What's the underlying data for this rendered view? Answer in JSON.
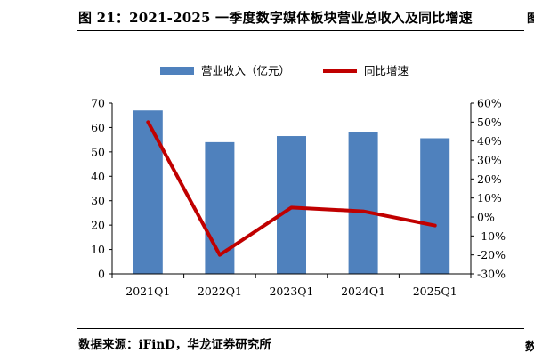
{
  "header": {
    "title": "图 21：2021-2025 一季度数字媒体板块营业总收入及同比增速",
    "edge_glyph_top": "图",
    "edge_glyph_bottom": "数"
  },
  "footer": {
    "source": "数据来源：iFinD，华龙证券研究所"
  },
  "chart_data": {
    "type": "bar",
    "title": "",
    "xlabel": "",
    "ylabel": "",
    "categories": [
      "2021Q1",
      "2022Q1",
      "2023Q1",
      "2024Q1",
      "2025Q1"
    ],
    "series": [
      {
        "name": "营业收入（亿元）",
        "type": "bar",
        "axis": "left",
        "color": "#4f81bd",
        "values": [
          67.0,
          54.0,
          56.5,
          58.2,
          55.6
        ]
      },
      {
        "name": "同比增速",
        "type": "line",
        "axis": "right",
        "color": "#c00000",
        "values": [
          50.0,
          -20.0,
          5.0,
          3.0,
          -4.5
        ]
      }
    ],
    "ylim": [
      0,
      70
    ],
    "yticks": [
      0,
      10,
      20,
      30,
      40,
      50,
      60,
      70
    ],
    "y2lim": [
      -30,
      60
    ],
    "y2ticks": [
      -30,
      -20,
      -10,
      0,
      10,
      20,
      30,
      40,
      50,
      60
    ],
    "y2_unit": "%",
    "grid": false,
    "legend_position": "top"
  }
}
